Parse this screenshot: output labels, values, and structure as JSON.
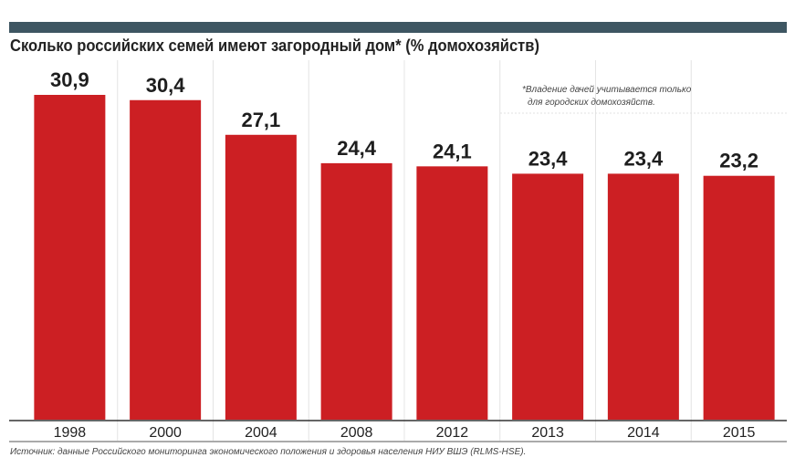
{
  "chart_data": {
    "type": "bar",
    "title": "Сколько российских семей имеют загородный дом* (% домохозяйств)",
    "categories": [
      "1998",
      "2000",
      "2004",
      "2008",
      "2012",
      "2013",
      "2014",
      "2015"
    ],
    "series": [
      {
        "values": [
          30.9,
          30.4,
          27.1,
          24.4,
          24.1,
          23.4,
          23.4,
          23.2
        ]
      }
    ],
    "data_labels": [
      "30,9",
      "30,4",
      "27,1",
      "24,4",
      "24,1",
      "23,4",
      "23,4",
      "23,2"
    ],
    "ylim": [
      0,
      30.9
    ],
    "xlabel": "",
    "ylabel": "",
    "grid": "vertical separators",
    "legend": "none",
    "bar_color": "#cc1f23"
  },
  "note": {
    "line1": "*Владение дачей учитывается только",
    "line2": "для городских домохозяйств."
  },
  "source": "Источник: данные Российского мониторинга экономического положения и здоровья населения НИУ ВШЭ (RLMS-HSE)."
}
